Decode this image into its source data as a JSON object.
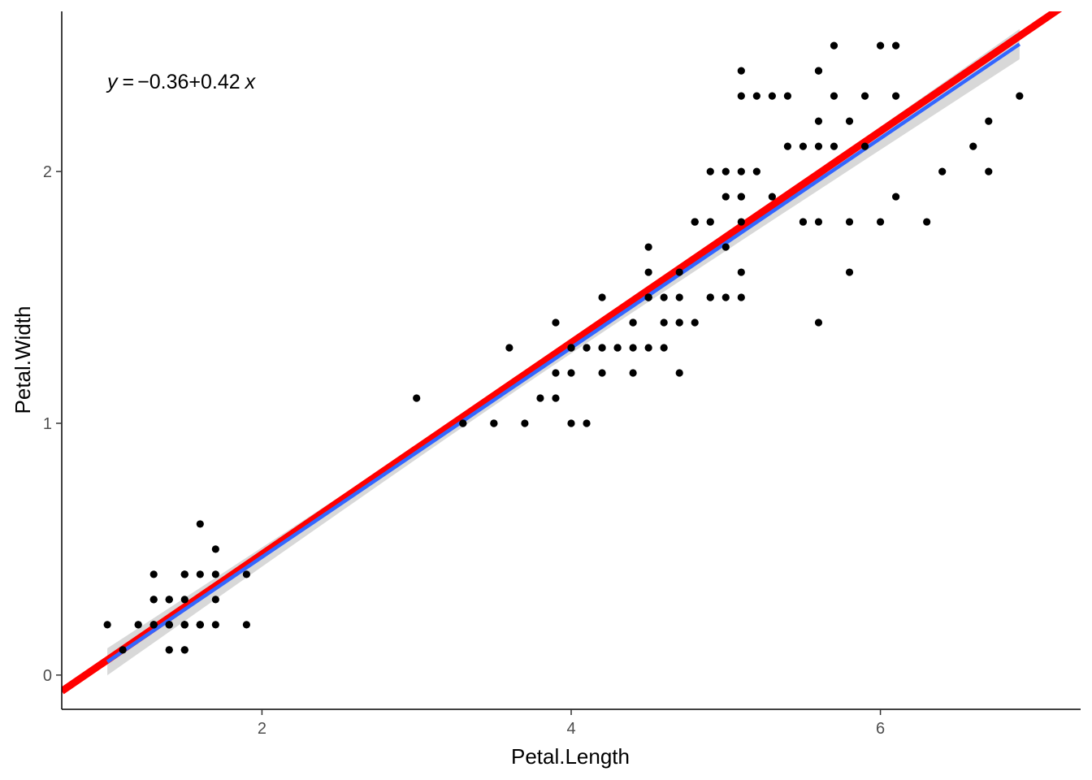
{
  "chart_data": {
    "type": "scatter",
    "title": "",
    "xlabel": "Petal.Length",
    "ylabel": "Petal.Width",
    "xlim": [
      0.705,
      7.295
    ],
    "ylim": [
      -0.136,
      2.636
    ],
    "x_ticks": [
      2,
      4,
      6
    ],
    "x_tick_labels": [
      "2",
      "4",
      "6"
    ],
    "y_ticks": [
      0,
      1,
      2
    ],
    "y_tick_labels": [
      "0",
      "1",
      "2"
    ],
    "grid": false,
    "equation": {
      "y": "y",
      "equals": "=",
      "minus": "−",
      "intercept": "0.36",
      "plus": "+",
      "slope": "0.42",
      "x": "x"
    },
    "regression": {
      "intercept": -0.3631,
      "slope": 0.4158,
      "x_range": [
        1.0,
        6.9
      ],
      "band_halfwidth_min": 0.022,
      "band_halfwidth_ends": 0.06,
      "band_center_x": 3.758
    },
    "reference_line": {
      "intercept": -0.36,
      "slope": 0.42
    },
    "colors": {
      "points": "#000000",
      "fit_line": "#3366FF",
      "confidence_band": "#BEBEBE",
      "reference_line": "#FF0000",
      "axis": "#000000"
    },
    "points": [
      [
        1.4,
        0.2
      ],
      [
        1.4,
        0.2
      ],
      [
        1.3,
        0.2
      ],
      [
        1.5,
        0.2
      ],
      [
        1.4,
        0.2
      ],
      [
        1.7,
        0.4
      ],
      [
        1.4,
        0.3
      ],
      [
        1.5,
        0.2
      ],
      [
        1.4,
        0.2
      ],
      [
        1.5,
        0.1
      ],
      [
        1.5,
        0.2
      ],
      [
        1.6,
        0.2
      ],
      [
        1.4,
        0.1
      ],
      [
        1.1,
        0.1
      ],
      [
        1.2,
        0.2
      ],
      [
        1.5,
        0.4
      ],
      [
        1.3,
        0.4
      ],
      [
        1.4,
        0.3
      ],
      [
        1.7,
        0.3
      ],
      [
        1.5,
        0.3
      ],
      [
        1.7,
        0.2
      ],
      [
        1.5,
        0.4
      ],
      [
        1.0,
        0.2
      ],
      [
        1.7,
        0.5
      ],
      [
        1.9,
        0.2
      ],
      [
        1.6,
        0.2
      ],
      [
        1.6,
        0.4
      ],
      [
        1.5,
        0.2
      ],
      [
        1.4,
        0.2
      ],
      [
        1.6,
        0.2
      ],
      [
        1.6,
        0.2
      ],
      [
        1.5,
        0.4
      ],
      [
        1.5,
        0.1
      ],
      [
        1.4,
        0.2
      ],
      [
        1.5,
        0.2
      ],
      [
        1.2,
        0.2
      ],
      [
        1.3,
        0.2
      ],
      [
        1.4,
        0.1
      ],
      [
        1.3,
        0.2
      ],
      [
        1.5,
        0.2
      ],
      [
        1.3,
        0.3
      ],
      [
        1.3,
        0.3
      ],
      [
        1.3,
        0.2
      ],
      [
        1.6,
        0.6
      ],
      [
        1.9,
        0.4
      ],
      [
        1.4,
        0.3
      ],
      [
        1.6,
        0.2
      ],
      [
        1.4,
        0.2
      ],
      [
        1.5,
        0.2
      ],
      [
        1.4,
        0.2
      ],
      [
        4.7,
        1.4
      ],
      [
        4.5,
        1.5
      ],
      [
        4.9,
        1.5
      ],
      [
        4.0,
        1.3
      ],
      [
        4.6,
        1.5
      ],
      [
        4.5,
        1.3
      ],
      [
        4.7,
        1.6
      ],
      [
        3.3,
        1.0
      ],
      [
        4.6,
        1.3
      ],
      [
        3.9,
        1.4
      ],
      [
        3.5,
        1.0
      ],
      [
        4.2,
        1.5
      ],
      [
        4.0,
        1.0
      ],
      [
        4.7,
        1.4
      ],
      [
        3.6,
        1.3
      ],
      [
        4.4,
        1.4
      ],
      [
        4.5,
        1.5
      ],
      [
        4.1,
        1.0
      ],
      [
        4.5,
        1.5
      ],
      [
        3.9,
        1.1
      ],
      [
        4.8,
        1.8
      ],
      [
        4.0,
        1.3
      ],
      [
        4.9,
        1.5
      ],
      [
        4.7,
        1.2
      ],
      [
        4.3,
        1.3
      ],
      [
        4.4,
        1.4
      ],
      [
        4.8,
        1.4
      ],
      [
        5.0,
        1.7
      ],
      [
        4.5,
        1.5
      ],
      [
        3.5,
        1.0
      ],
      [
        3.8,
        1.1
      ],
      [
        3.7,
        1.0
      ],
      [
        3.9,
        1.2
      ],
      [
        5.1,
        1.6
      ],
      [
        4.5,
        1.5
      ],
      [
        4.5,
        1.6
      ],
      [
        4.7,
        1.5
      ],
      [
        4.4,
        1.3
      ],
      [
        4.1,
        1.3
      ],
      [
        4.0,
        1.3
      ],
      [
        4.4,
        1.2
      ],
      [
        4.6,
        1.4
      ],
      [
        4.0,
        1.2
      ],
      [
        3.3,
        1.0
      ],
      [
        4.2,
        1.3
      ],
      [
        4.2,
        1.2
      ],
      [
        4.2,
        1.3
      ],
      [
        4.3,
        1.3
      ],
      [
        3.0,
        1.1
      ],
      [
        4.1,
        1.3
      ],
      [
        6.0,
        2.5
      ],
      [
        5.1,
        1.9
      ],
      [
        5.9,
        2.1
      ],
      [
        5.6,
        1.8
      ],
      [
        5.8,
        2.2
      ],
      [
        6.6,
        2.1
      ],
      [
        4.5,
        1.7
      ],
      [
        6.3,
        1.8
      ],
      [
        5.8,
        1.8
      ],
      [
        6.1,
        2.5
      ],
      [
        5.1,
        2.0
      ],
      [
        5.3,
        1.9
      ],
      [
        5.5,
        2.1
      ],
      [
        5.0,
        2.0
      ],
      [
        5.1,
        2.4
      ],
      [
        5.3,
        2.3
      ],
      [
        5.5,
        1.8
      ],
      [
        6.7,
        2.2
      ],
      [
        6.9,
        2.3
      ],
      [
        5.0,
        1.5
      ],
      [
        5.7,
        2.3
      ],
      [
        4.9,
        2.0
      ],
      [
        6.7,
        2.0
      ],
      [
        4.9,
        1.8
      ],
      [
        5.7,
        2.1
      ],
      [
        6.0,
        1.8
      ],
      [
        4.8,
        1.8
      ],
      [
        4.9,
        1.8
      ],
      [
        5.6,
        2.1
      ],
      [
        5.8,
        1.6
      ],
      [
        6.1,
        1.9
      ],
      [
        6.4,
        2.0
      ],
      [
        5.6,
        2.2
      ],
      [
        5.1,
        1.5
      ],
      [
        5.6,
        1.4
      ],
      [
        6.1,
        2.3
      ],
      [
        5.6,
        2.4
      ],
      [
        5.5,
        1.8
      ],
      [
        4.8,
        1.8
      ],
      [
        5.4,
        2.1
      ],
      [
        5.6,
        2.4
      ],
      [
        5.1,
        2.3
      ],
      [
        5.1,
        1.9
      ],
      [
        5.9,
        2.3
      ],
      [
        5.7,
        2.5
      ],
      [
        5.2,
        2.3
      ],
      [
        5.0,
        1.9
      ],
      [
        5.2,
        2.0
      ],
      [
        5.4,
        2.3
      ],
      [
        5.1,
        1.8
      ]
    ]
  }
}
